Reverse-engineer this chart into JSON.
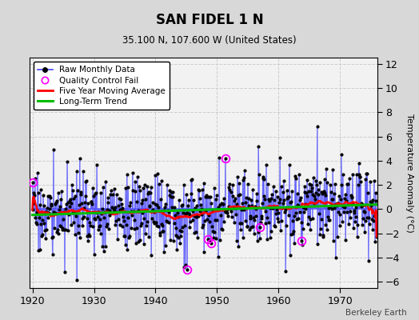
{
  "title": "SAN FIDEL 1 N",
  "subtitle": "35.100 N, 107.600 W (United States)",
  "ylabel": "Temperature Anomaly (°C)",
  "attribution": "Berkeley Earth",
  "year_start": 1920,
  "year_end": 1975,
  "ylim": [
    -6.5,
    12.5
  ],
  "yticks": [
    -6,
    -4,
    -2,
    0,
    2,
    4,
    6,
    8,
    10,
    12
  ],
  "xticks": [
    1920,
    1930,
    1940,
    1950,
    1960,
    1970
  ],
  "bg_color": "#d8d8d8",
  "plot_bg_color": "#f2f2f2",
  "raw_line_color": "#4444ff",
  "raw_dot_color": "#000000",
  "qc_fail_color": "#ff00ff",
  "moving_avg_color": "#ff0000",
  "trend_color": "#00bb00",
  "seed": 17
}
